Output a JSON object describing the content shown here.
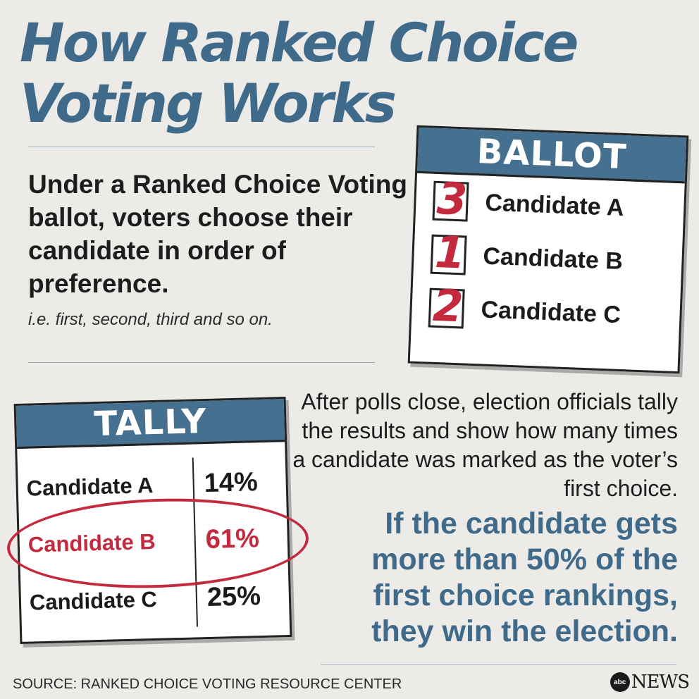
{
  "title": {
    "line1": "How Ranked Choice",
    "line2": "Voting Works"
  },
  "intro": {
    "text": "Under a Ranked Choice Voting ballot, voters choose their candidate in order of preference.",
    "example": "i.e. first, second, third and so on."
  },
  "ballot": {
    "header": "BALLOT",
    "rows": [
      {
        "rank": "3",
        "candidate": "Candidate A"
      },
      {
        "rank": "1",
        "candidate": "Candidate B"
      },
      {
        "rank": "2",
        "candidate": "Candidate C"
      }
    ]
  },
  "tally": {
    "header": "TALLY",
    "rows": [
      {
        "candidate": "Candidate A",
        "percent": "14%"
      },
      {
        "candidate": "Candidate B",
        "percent": "61%"
      },
      {
        "candidate": "Candidate C",
        "percent": "25%"
      }
    ],
    "highlight_color": "#c42a3e"
  },
  "explanation": {
    "text": "After polls close, election officials tally the results and show how many times a candidate was marked as the voter’s first choice.",
    "highlight": "If the candidate gets more than 50% of the first choice rankings, they win the election."
  },
  "footer": {
    "source": "SOURCE: RANKED CHOICE VOTING RESOURCE CENTER",
    "logo_mark": "abc",
    "logo_word": "NEWS"
  },
  "colors": {
    "accent_blue": "#3f6a8a",
    "header_blue": "#45708f",
    "mark_red": "#c42a3e",
    "background": "#ecebe8"
  }
}
